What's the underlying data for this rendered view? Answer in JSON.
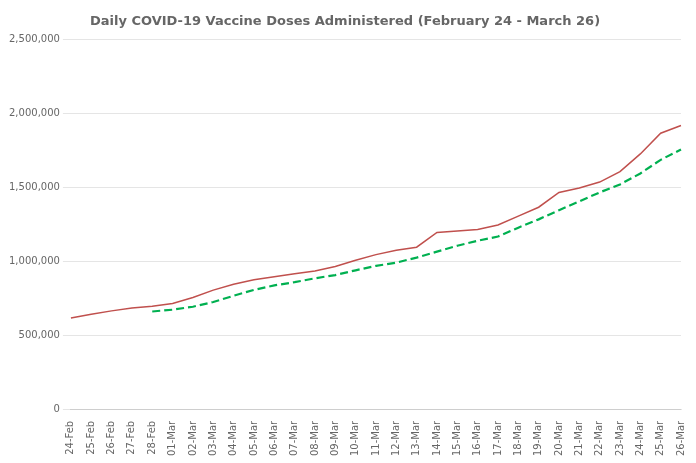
{
  "chart_data": {
    "type": "line",
    "title": "Daily COVID-19 Vaccine Doses Administered (February 24 - March 26)",
    "categories": [
      "24-Feb",
      "25-Feb",
      "26-Feb",
      "27-Feb",
      "28-Feb",
      "01-Mar",
      "02-Mar",
      "03-Mar",
      "04-Mar",
      "05-Mar",
      "06-Mar",
      "07-Mar",
      "08-Mar",
      "09-Mar",
      "10-Mar",
      "11-Mar",
      "12-Mar",
      "13-Mar",
      "14-Mar",
      "15-Mar",
      "16-Mar",
      "17-Mar",
      "18-Mar",
      "19-Mar",
      "20-Mar",
      "21-Mar",
      "22-Mar",
      "23-Mar",
      "24-Mar",
      "25-Mar",
      "26-Mar"
    ],
    "series": [
      {
        "color": "#c0504d",
        "line_style": "solid",
        "values": [
          620000,
          645000,
          668000,
          688000,
          700000,
          718000,
          758000,
          808000,
          848000,
          878000,
          898000,
          918000,
          938000,
          968000,
          1010000,
          1048000,
          1078000,
          1098000,
          1198000,
          1208000,
          1218000,
          1248000,
          1308000,
          1368000,
          1468000,
          1498000,
          1538000,
          1608000,
          1728000,
          1868000,
          1920000
        ]
      },
      {
        "color": "#00b050",
        "line_style": "dashed",
        "values": [
          null,
          null,
          null,
          null,
          664000,
          676000,
          696000,
          728000,
          770000,
          810000,
          840000,
          862000,
          888000,
          910000,
          942000,
          972000,
          994000,
          1028000,
          1068000,
          1108000,
          1142000,
          1170000,
          1230000,
          1286000,
          1348000,
          1408000,
          1468000,
          1522000,
          1596000,
          1688000,
          1758000
        ]
      }
    ],
    "ylim": [
      0,
      2500000
    ],
    "yticks": [
      0,
      {
        "value": 500000,
        "label": "500,000"
      },
      {
        "value": 1000000,
        "label": "1,000,000"
      },
      {
        "value": 1500000,
        "label": "1,500,000"
      },
      {
        "value": 2000000,
        "label": "2,000,000"
      },
      {
        "value": 2500000,
        "label": "2,500,000"
      }
    ],
    "grid": "y"
  }
}
